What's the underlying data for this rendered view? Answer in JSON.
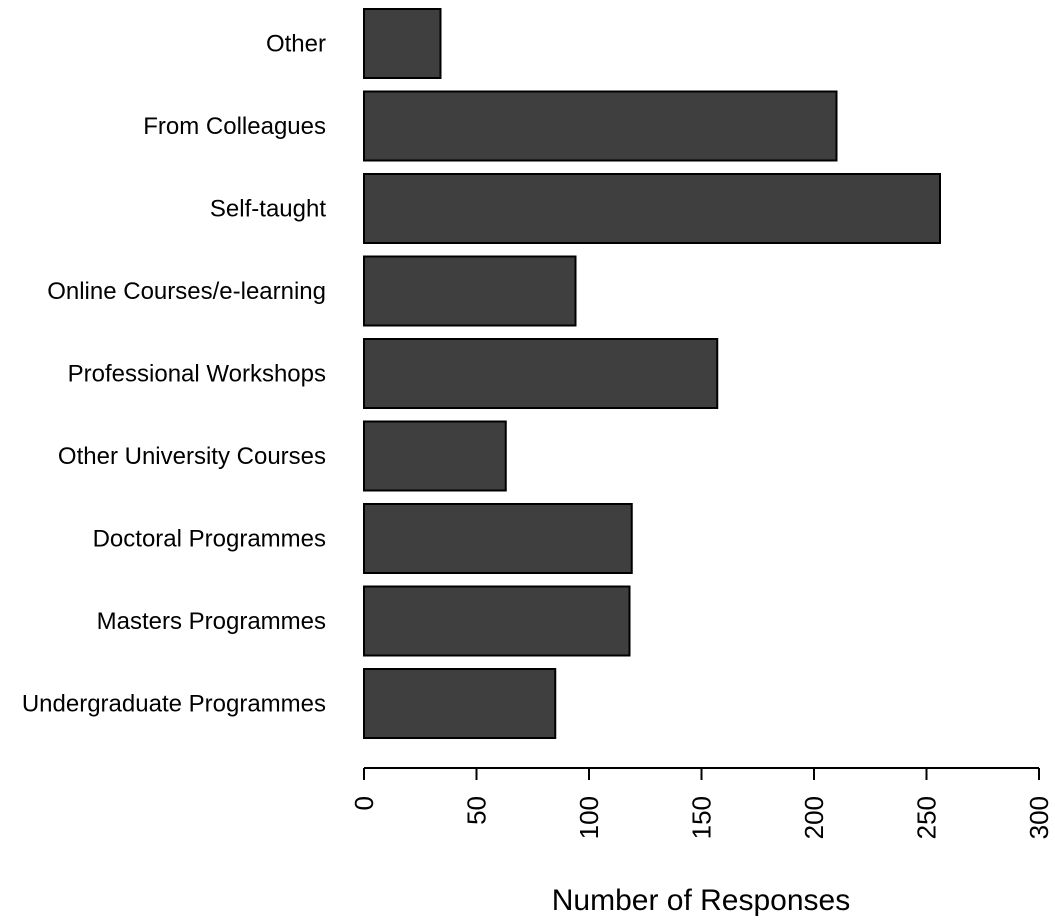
{
  "chart_data": {
    "type": "bar",
    "orientation": "horizontal",
    "categories": [
      "Undergraduate Programmes",
      "Masters Programmes",
      "Doctoral Programmes",
      "Other University Courses",
      "Professional Workshops",
      "Online Courses/e-learning",
      "Self-taught",
      "From Colleagues",
      "Other"
    ],
    "values": [
      85,
      118,
      119,
      63,
      157,
      94,
      256,
      210,
      34
    ],
    "xlabel": "Number of Responses",
    "ylabel": "",
    "title": "",
    "xlim": [
      0,
      300
    ],
    "xticks": [
      "0",
      "50",
      "100",
      "150",
      "200",
      "250",
      "300"
    ],
    "grid": false,
    "colors": {
      "bar_fill": "#3f3f3f",
      "bar_stroke": "#000000"
    }
  }
}
